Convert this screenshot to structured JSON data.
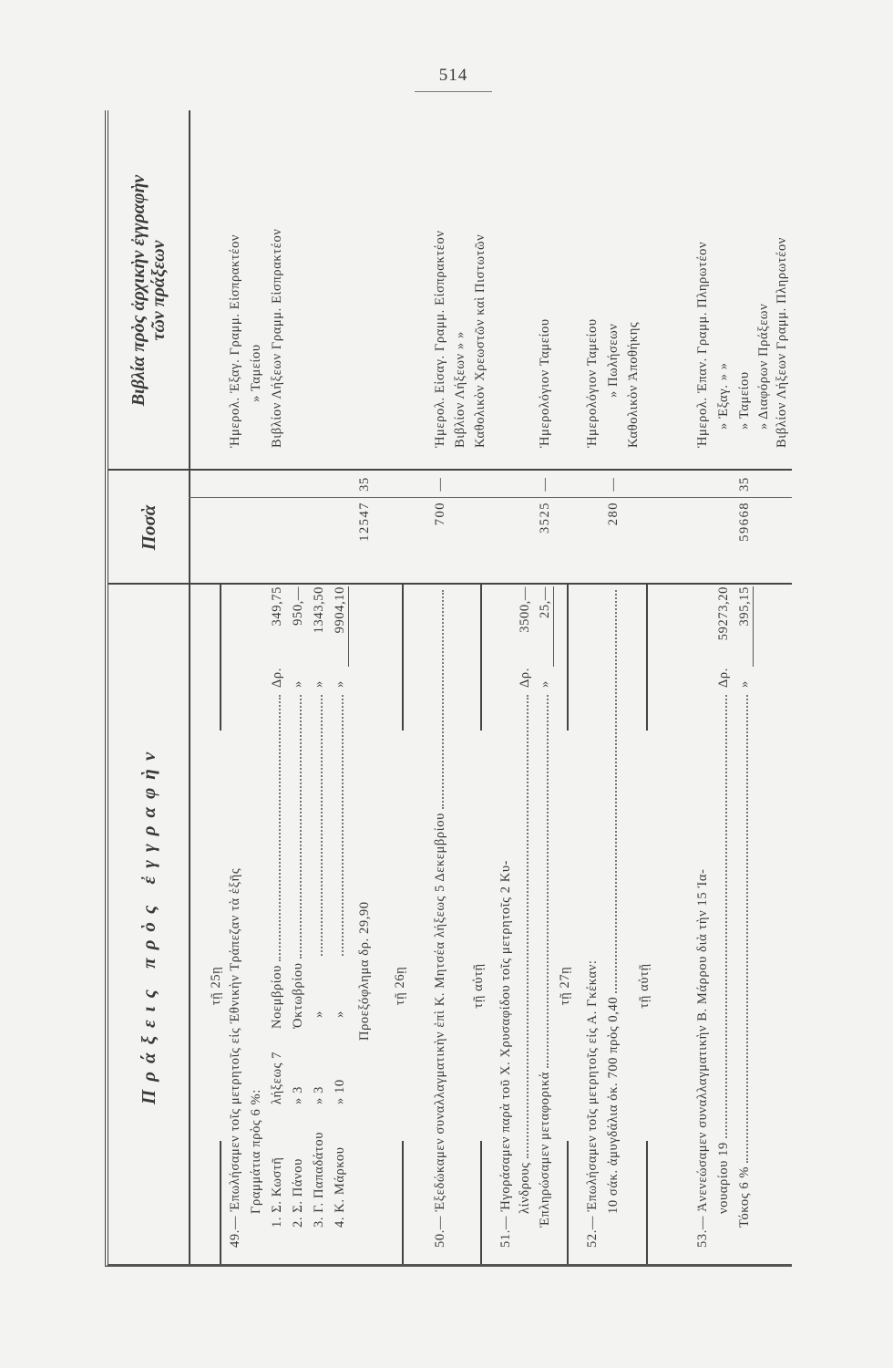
{
  "page_number": "514",
  "header": {
    "col_actions": "Πράξεις πρὸς ἐγγραφὴν",
    "col_amounts": "Ποσὰ",
    "col_books_line1": "Βιβλία πρὸς ἀρχικὴν ἐγγραφὴν",
    "col_books_line2": "τῶν πράξεων"
  },
  "e49": {
    "date": "τῇ 25ῃ",
    "l1": "49.— Ἐπωλήσαμεν τοῖς μετρητοῖς εἰς Ἐθνικὴν Τράπεζαν τὰ ἑξῆς",
    "l2": "Γραμμάτια πρὸς 6 %:",
    "items": [
      {
        "name": "1. Σ. Κωστῆ",
        "term": "λήξεως 7",
        "month": "Νοεμβρίου",
        "cur": "Δρ.",
        "amt": "349,75"
      },
      {
        "name": "2. Σ. Πάνου",
        "term": "» 3",
        "month": "Ὀκτωβρίου",
        "cur": "»",
        "amt": "950,—"
      },
      {
        "name": "3. Γ. Παπαδάτου",
        "term": "» 3",
        "month": "»",
        "cur": "»",
        "amt": "1343,50"
      },
      {
        "name": "4. Κ. Μάρκου",
        "term": "» 10",
        "month": "»",
        "cur": "»",
        "amt": "9904,10"
      }
    ],
    "discount": "Προεξόφλημα δρ. 29,90",
    "total": "12547",
    "total_dec": "35",
    "books": [
      "Ἡμερολ. Ἐξαγ. Γραμμ. Εἰσπρακτέον",
      "» Ταμείου",
      "Βιβλίον Λήξεων Γραμμ. Εἰσπρακτέον"
    ]
  },
  "e50": {
    "date": "τῇ 26ῃ",
    "l1": "50.— Ἐξεδώκαμεν συναλλαγματικὴν ἐπὶ Κ. Μητσέα λήξεως 5 Δεκεμβρίου",
    "total": "700",
    "total_dec": "—",
    "books": [
      "Ἡμερολ. Εἰσαγ. Γραμμ. Εἰσπρακτέον",
      "Βιβλίον Λήξεων » »",
      "Καθολικὸν Χρεωστῶν καὶ Πιστωτῶν"
    ]
  },
  "e51": {
    "date": "τῇ αὐτῇ",
    "l1": "51.— Ἠγοράσαμεν παρὰ τοῦ Χ. Χρυσαφίδου τοῖς μετρητοῖς 2 Κυ-",
    "l2": "λίνδρους",
    "cur": "Δρ.",
    "amt": "3500,—",
    "l3": "Ἐπληρώσαμεν μεταφορικά",
    "cur2": "»",
    "amt2": "25,—",
    "total": "3525",
    "total_dec": "—",
    "books": [
      "Ἡμερολόγιον Ταμείου"
    ]
  },
  "e52": {
    "date": "τῇ 27ῃ",
    "l1": "52.— Ἐπωλήσαμεν τοῖς μετρητοῖς εἰς Α. Γκέκαν:",
    "l2": "10 σάκ. ἀμυγδάλια ὀκ. 700 πρὸς 0,40",
    "total": "280",
    "total_dec": "—",
    "books": [
      "Ἡμερολόγιον Ταμείου",
      "» Πωλήσεων",
      "Καθολικὸν Ἀποθήκης"
    ]
  },
  "e53": {
    "date": "τῇ αὐτῇ",
    "l1": "53.— Ἀνενεώσαμεν συναλλαγματικὴν Β. Μάρρου διὰ τὴν 15 Ἰα-",
    "l2": "νουαρίου 19",
    "cur": "Δρ.",
    "amt": "59273,20",
    "l3": "Τόκος 6 %",
    "cur2": "»",
    "amt2": "395,15",
    "total": "59668",
    "total_dec": "35",
    "books": [
      "Ἡμερολ. Ἐπαν. Γραμμ. Πληρωτέον",
      "» Ἐξαγ. » »",
      "» Ταμείου",
      "» Διαφόρων Πράξεων",
      "Βιβλίον Λήξεων Γραμμ. Πληρωτέον"
    ]
  }
}
